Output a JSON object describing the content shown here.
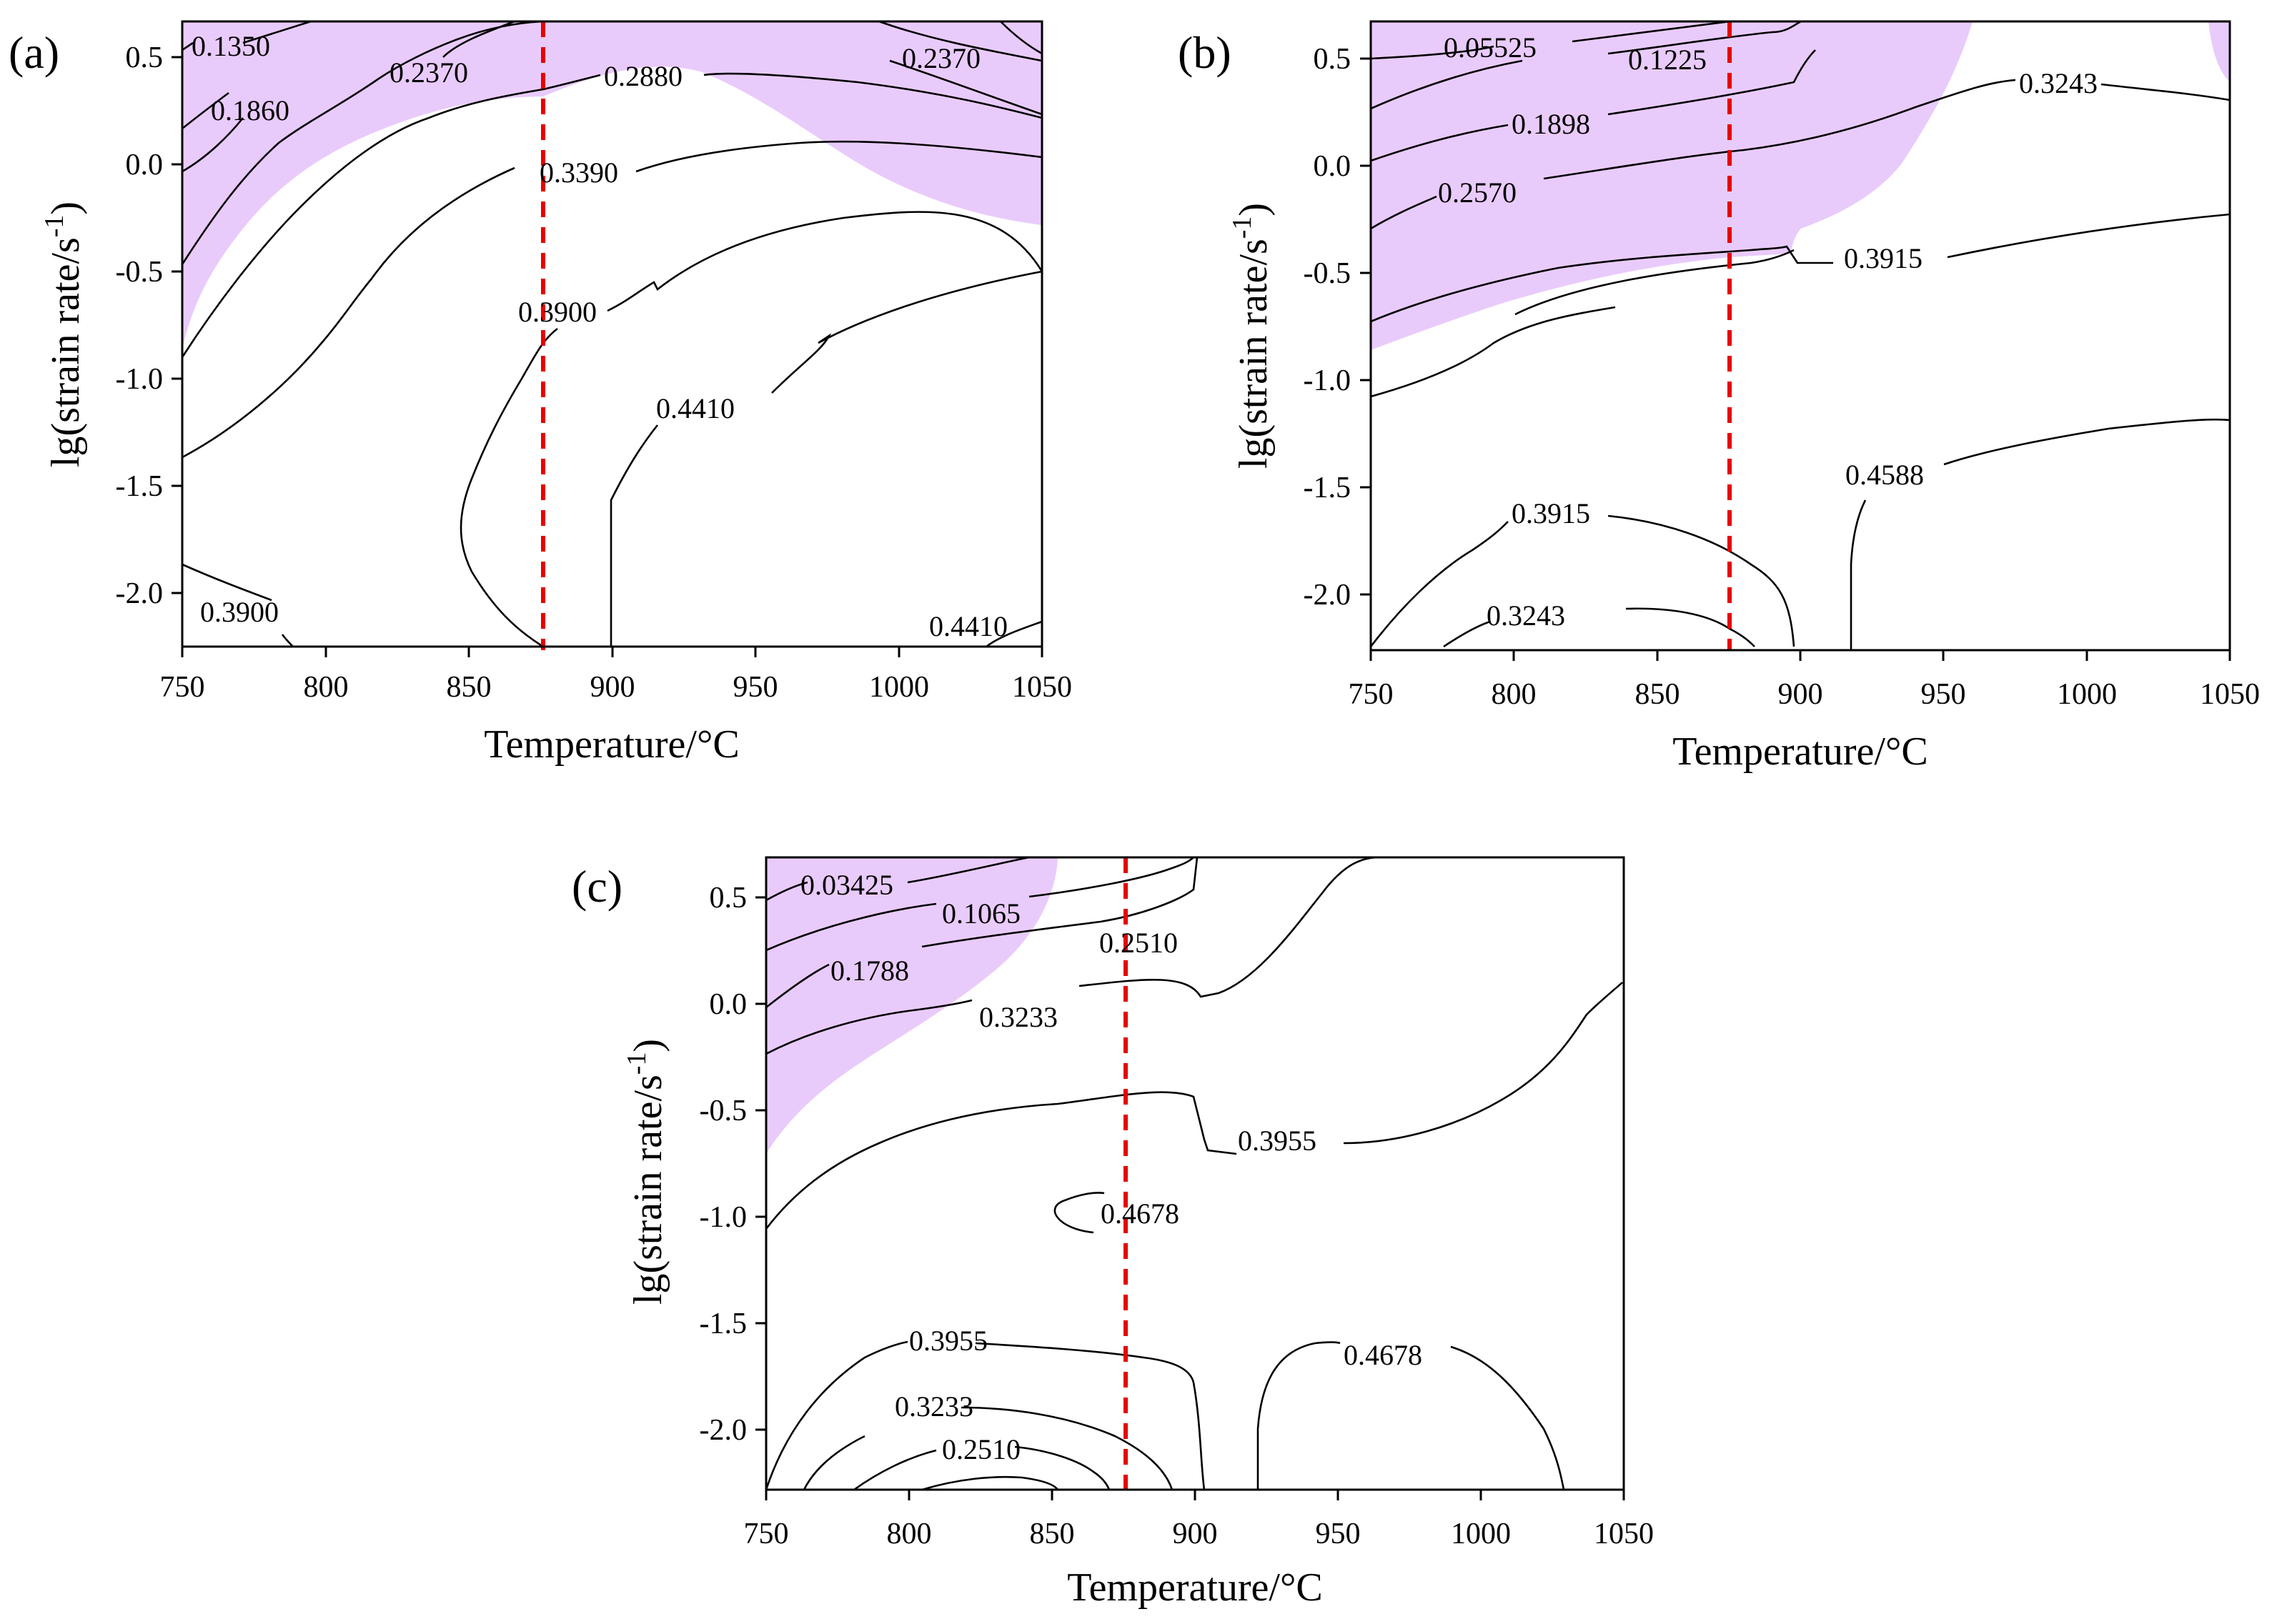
{
  "figure": {
    "panels": [
      {
        "letter": "(a)",
        "xlabel": "Temperature/°C",
        "ylabel": "lg(strain rate/s",
        "ylabel_sup": "-1",
        "ylabel_end": ")",
        "xticks": [
          "750",
          "800",
          "850",
          "900",
          "950",
          "1000",
          "1050"
        ],
        "yticks": [
          "0.5",
          "0.0",
          "-0.5",
          "-1.0",
          "-1.5",
          "-2.0"
        ],
        "contour_labels": [
          "0.1350",
          "0.1860",
          "0.2370",
          "0.2880",
          "0.2370",
          "0.3390",
          "0.3900",
          "0.4410",
          "0.3900",
          "0.4410"
        ]
      },
      {
        "letter": "(b)",
        "xlabel": "Temperature/°C",
        "ylabel": "lg(strain rate/s",
        "ylabel_sup": "-1",
        "ylabel_end": ")",
        "xticks": [
          "750",
          "800",
          "850",
          "900",
          "950",
          "1000",
          "1050"
        ],
        "yticks": [
          "0.5",
          "0.0",
          "-0.5",
          "-1.0",
          "-1.5",
          "-2.0"
        ],
        "contour_labels": [
          "0.05525",
          "0.1225",
          "0.1898",
          "0.2570",
          "0.3243",
          "0.3915",
          "0.4588",
          "0.3915",
          "0.3243"
        ]
      },
      {
        "letter": "(c)",
        "xlabel": "Temperature/°C",
        "ylabel": "lg(strain rate/s",
        "ylabel_sup": "-1",
        "ylabel_end": ")",
        "xticks": [
          "750",
          "800",
          "850",
          "900",
          "950",
          "1000",
          "1050"
        ],
        "yticks": [
          "0.5",
          "0.0",
          "-0.5",
          "-1.0",
          "-1.5",
          "-2.0"
        ],
        "contour_labels": [
          "0.03425",
          "0.1065",
          "0.1788",
          "0.2510",
          "0.3233",
          "0.3955",
          "0.4678",
          "0.3955",
          "0.4678",
          "0.3233",
          "0.2510"
        ]
      }
    ]
  },
  "chart_data": [
    {
      "type": "contour",
      "title": "(a)",
      "xlabel": "Temperature/°C",
      "ylabel": "lg(strain rate/s-1)",
      "xlim": [
        750,
        1050
      ],
      "ylim": [
        -2.3,
        0.7
      ],
      "contour_levels": [
        0.135,
        0.186,
        0.237,
        0.288,
        0.339,
        0.39,
        0.441
      ],
      "instability_region": "upper-left and upper-right (shaded purple)",
      "reference_line_temperature": 875,
      "colors": {
        "instability": "#e9cbfb",
        "reference_line": "#e60000",
        "contour": "#000000"
      }
    },
    {
      "type": "contour",
      "title": "(b)",
      "xlabel": "Temperature/°C",
      "ylabel": "lg(strain rate/s-1)",
      "xlim": [
        750,
        1050
      ],
      "ylim": [
        -2.3,
        0.7
      ],
      "contour_levels": [
        0.05525,
        0.1225,
        0.1898,
        0.257,
        0.3243,
        0.3915,
        0.4588
      ],
      "instability_region": "upper-left (shaded purple)",
      "reference_line_temperature": 875,
      "colors": {
        "instability": "#e9cbfb",
        "reference_line": "#e60000",
        "contour": "#000000"
      }
    },
    {
      "type": "contour",
      "title": "(c)",
      "xlabel": "Temperature/°C",
      "ylabel": "lg(strain rate/s-1)",
      "xlim": [
        750,
        1050
      ],
      "ylim": [
        -2.3,
        0.7
      ],
      "contour_levels": [
        0.03425,
        0.1065,
        0.1788,
        0.251,
        0.3233,
        0.3955,
        0.4678
      ],
      "instability_region": "upper-left (shaded purple)",
      "reference_line_temperature": 875,
      "colors": {
        "instability": "#e9cbfb",
        "reference_line": "#e60000",
        "contour": "#000000"
      }
    }
  ]
}
